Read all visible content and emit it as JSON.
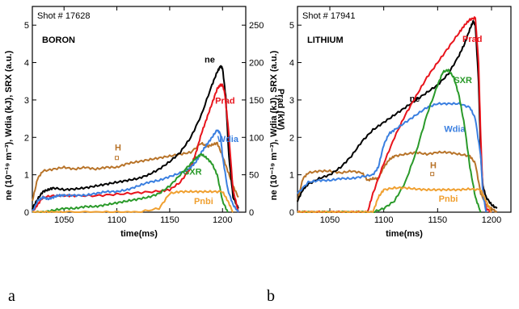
{
  "panel_labels": [
    "a",
    "b"
  ],
  "chart_data": [
    {
      "type": "line",
      "shot": "Shot # 17628",
      "material": "BORON",
      "xlabel": "time(ms)",
      "ylabel_left": "ne (10⁻¹⁹ m⁻³), Wdia (kJ), SRX (a.u.)",
      "ylabel_right": "Prad (kW)",
      "xlim": [
        1020,
        1222
      ],
      "ylim_left": [
        0,
        5.5
      ],
      "ylim_right": [
        0,
        275
      ],
      "xticks": [
        1050,
        1100,
        1150,
        1200
      ],
      "yticks_left": [
        0,
        1,
        2,
        3,
        4,
        5
      ],
      "yticks_right": [
        0,
        50,
        100,
        150,
        200,
        250
      ],
      "series": [
        {
          "name": "H",
          "color": "#b8742a",
          "label_at": [
            1098,
            1.65
          ],
          "marker_at": [
            1100,
            1.45
          ],
          "x": [
            1020,
            1025,
            1030,
            1040,
            1050,
            1060,
            1070,
            1080,
            1090,
            1100,
            1110,
            1120,
            1130,
            1140,
            1150,
            1160,
            1170,
            1180,
            1185,
            1190,
            1195,
            1200,
            1205,
            1210,
            1215
          ],
          "y": [
            0.3,
            0.9,
            1.1,
            1.15,
            1.2,
            1.15,
            1.2,
            1.15,
            1.2,
            1.2,
            1.3,
            1.35,
            1.4,
            1.45,
            1.5,
            1.55,
            1.6,
            1.85,
            1.75,
            1.8,
            1.85,
            1.5,
            1.1,
            0.7,
            0.4
          ]
        },
        {
          "name": "ne",
          "color": "#000000",
          "label_at": [
            1183,
            4.0
          ],
          "x": [
            1020,
            1025,
            1030,
            1035,
            1040,
            1050,
            1060,
            1070,
            1080,
            1090,
            1100,
            1110,
            1120,
            1130,
            1140,
            1150,
            1160,
            1170,
            1180,
            1190,
            1195,
            1198,
            1200,
            1203,
            1206,
            1210,
            1215
          ],
          "y": [
            0.1,
            0.35,
            0.55,
            0.6,
            0.65,
            0.6,
            0.62,
            0.65,
            0.7,
            0.75,
            0.8,
            0.85,
            0.9,
            1.0,
            1.15,
            1.35,
            1.6,
            2.0,
            2.6,
            3.4,
            3.75,
            3.9,
            3.85,
            3.1,
            1.5,
            0.4,
            0.1
          ]
        },
        {
          "name": "Prad",
          "color": "#e8141c",
          "label_at": [
            1193,
            2.9
          ],
          "x": [
            1020,
            1025,
            1030,
            1040,
            1050,
            1060,
            1080,
            1100,
            1120,
            1140,
            1150,
            1160,
            1170,
            1175,
            1180,
            1185,
            1190,
            1195,
            1198,
            1200,
            1202,
            1205,
            1210,
            1215
          ],
          "y": [
            0,
            10,
            20,
            22,
            22,
            22,
            22,
            24,
            26,
            28,
            30,
            40,
            60,
            80,
            105,
            125,
            145,
            165,
            170,
            170,
            160,
            120,
            30,
            0
          ]
        },
        {
          "name": "Wdia",
          "color": "#3a7fe0",
          "label_at": [
            1195,
            1.88
          ],
          "x": [
            1020,
            1025,
            1030,
            1035,
            1040,
            1045,
            1050,
            1060,
            1070,
            1080,
            1090,
            1100,
            1110,
            1120,
            1130,
            1140,
            1150,
            1160,
            1165,
            1170,
            1175,
            1180,
            1185,
            1190,
            1195,
            1198,
            1200,
            1205,
            1210,
            1215
          ],
          "y": [
            0,
            0.3,
            0.4,
            0.35,
            0.4,
            0.45,
            0.45,
            0.45,
            0.45,
            0.5,
            0.55,
            0.55,
            0.6,
            0.7,
            0.8,
            0.85,
            0.95,
            1.05,
            1.1,
            1.2,
            1.35,
            1.6,
            1.8,
            2.0,
            2.2,
            2.1,
            1.5,
            0.6,
            0.2,
            0
          ]
        },
        {
          "name": "SXR",
          "color": "#2a9a2a",
          "label_at": [
            1163,
            1.0
          ],
          "x": [
            1020,
            1030,
            1040,
            1050,
            1060,
            1070,
            1080,
            1090,
            1100,
            1110,
            1120,
            1130,
            1140,
            1150,
            1160,
            1170,
            1175,
            1180,
            1185,
            1190,
            1195,
            1200,
            1205
          ],
          "y": [
            0,
            0,
            0.05,
            0.1,
            0.1,
            0.15,
            0.15,
            0.2,
            0.25,
            0.3,
            0.35,
            0.4,
            0.5,
            0.7,
            1.0,
            1.3,
            1.45,
            1.55,
            1.45,
            1.3,
            1.0,
            0.3,
            0
          ]
        },
        {
          "name": "Pnbi",
          "color": "#f0a030",
          "label_at": [
            1173,
            0.22
          ],
          "x": [
            1020,
            1030,
            1040,
            1050,
            1080,
            1100,
            1120,
            1140,
            1150,
            1160,
            1170,
            1180,
            1190,
            1200,
            1205,
            1210
          ],
          "y": [
            0,
            0,
            0,
            0,
            0,
            0,
            0,
            0.1,
            0.5,
            0.55,
            0.55,
            0.55,
            0.55,
            0.55,
            0.3,
            0
          ]
        }
      ]
    },
    {
      "type": "line",
      "shot": "Shot # 17941",
      "material": "LITHIUM",
      "xlabel": "time(ms)",
      "ylabel_left": "ne (10⁻¹⁹ m⁻³), Wdia (kJ), SRX (a.u.)",
      "xlim": [
        1020,
        1218
      ],
      "ylim_left": [
        0,
        5.5
      ],
      "xticks": [
        1050,
        1100,
        1150,
        1200
      ],
      "yticks_left": [
        0,
        1,
        2,
        3,
        4,
        5
      ],
      "series": [
        {
          "name": "H",
          "color": "#b8742a",
          "label_at": [
            1143,
            1.18
          ],
          "marker_at": [
            1145,
            1.02
          ],
          "x": [
            1020,
            1025,
            1030,
            1040,
            1050,
            1060,
            1070,
            1080,
            1085,
            1090,
            1095,
            1100,
            1105,
            1110,
            1120,
            1130,
            1140,
            1150,
            1160,
            1170,
            1180,
            1185,
            1190,
            1195,
            1200,
            1205
          ],
          "y": [
            0.3,
            0.9,
            1.05,
            1.1,
            1.1,
            1.05,
            1.1,
            1.05,
            0.85,
            0.9,
            0.9,
            1.2,
            1.4,
            1.5,
            1.55,
            1.6,
            1.55,
            1.6,
            1.6,
            1.55,
            1.5,
            1.3,
            0.5,
            0.2,
            0.1,
            0
          ]
        },
        {
          "name": "ne",
          "color": "#000000",
          "label_at": [
            1124,
            2.95
          ],
          "x": [
            1020,
            1025,
            1030,
            1040,
            1050,
            1060,
            1070,
            1080,
            1090,
            1100,
            1110,
            1120,
            1130,
            1140,
            1150,
            1160,
            1170,
            1175,
            1180,
            1183,
            1185,
            1188,
            1190,
            1192,
            1195,
            1200,
            1205
          ],
          "y": [
            0.3,
            0.6,
            0.75,
            0.9,
            1.0,
            1.2,
            1.5,
            1.9,
            2.2,
            2.4,
            2.6,
            2.8,
            3.0,
            3.2,
            3.4,
            3.7,
            4.2,
            4.5,
            4.9,
            5.1,
            5.0,
            3.5,
            1.5,
            0.7,
            0.4,
            0.2,
            0.1
          ]
        },
        {
          "name": "Prad",
          "color": "#e8141c",
          "label_at": [
            1173,
            4.55
          ],
          "x": [
            1020,
            1030,
            1040,
            1050,
            1060,
            1070,
            1080,
            1085,
            1090,
            1100,
            1110,
            1120,
            1130,
            1140,
            1150,
            1160,
            1170,
            1175,
            1180,
            1185,
            1188,
            1190,
            1192,
            1195,
            1200
          ],
          "y": [
            0,
            0,
            0,
            0,
            0,
            0,
            0,
            0,
            0.5,
            1.3,
            2.0,
            2.6,
            3.1,
            3.6,
            4.0,
            4.4,
            4.8,
            5.0,
            5.15,
            5.2,
            4.0,
            2.0,
            0.5,
            0.1,
            0
          ]
        },
        {
          "name": "Wdia",
          "color": "#3a7fe0",
          "label_at": [
            1156,
            2.15
          ],
          "x": [
            1020,
            1030,
            1040,
            1050,
            1060,
            1070,
            1080,
            1090,
            1095,
            1100,
            1105,
            1110,
            1120,
            1130,
            1140,
            1150,
            1160,
            1170,
            1180,
            1185,
            1190,
            1192,
            1195
          ],
          "y": [
            0.5,
            0.8,
            0.85,
            0.85,
            0.9,
            0.9,
            0.95,
            1.0,
            1.2,
            1.8,
            2.1,
            2.2,
            2.4,
            2.6,
            2.8,
            2.9,
            2.9,
            2.9,
            2.8,
            2.5,
            1.5,
            0.5,
            0
          ]
        },
        {
          "name": "SXR",
          "color": "#2a9a2a",
          "label_at": [
            1165,
            3.45
          ],
          "x": [
            1020,
            1030,
            1040,
            1050,
            1060,
            1070,
            1080,
            1090,
            1100,
            1110,
            1120,
            1130,
            1140,
            1150,
            1155,
            1160,
            1165,
            1170,
            1175,
            1180,
            1185,
            1190
          ],
          "y": [
            0,
            0,
            0,
            0,
            0,
            0,
            0,
            0,
            0.1,
            0.3,
            0.8,
            1.6,
            2.6,
            3.4,
            3.75,
            3.8,
            3.6,
            3.1,
            2.3,
            1.2,
            0.4,
            0
          ]
        },
        {
          "name": "Pnbi",
          "color": "#f0a030",
          "label_at": [
            1151,
            0.28
          ],
          "x": [
            1020,
            1030,
            1040,
            1050,
            1060,
            1070,
            1080,
            1090,
            1095,
            1100,
            1110,
            1120,
            1130,
            1140,
            1150,
            1160,
            1170,
            1180,
            1190,
            1195,
            1200
          ],
          "y": [
            0,
            0,
            0,
            0,
            0,
            0,
            0,
            0,
            0.4,
            0.6,
            0.65,
            0.65,
            0.62,
            0.6,
            0.6,
            0.6,
            0.6,
            0.62,
            0.6,
            0.3,
            0
          ]
        }
      ]
    }
  ]
}
